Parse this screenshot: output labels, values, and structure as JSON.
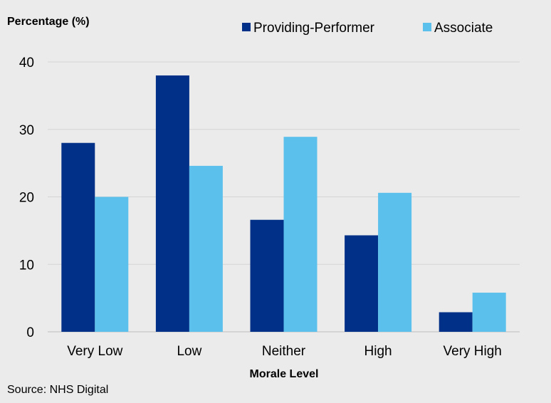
{
  "chart_data": {
    "type": "bar",
    "ylabel": "Percentage (%)",
    "xlabel": "Morale Level",
    "categories": [
      "Very Low",
      "Low",
      "Neither",
      "High",
      "Very High"
    ],
    "series": [
      {
        "name": "Providing-Performer",
        "color": "#003087",
        "values": [
          28,
          38,
          16.6,
          14.3,
          2.9
        ]
      },
      {
        "name": "Associate",
        "color": "#5bc0eb",
        "values": [
          20,
          24.6,
          28.9,
          20.6,
          5.8
        ]
      }
    ],
    "ylim": [
      0,
      40
    ],
    "yticks": [
      0,
      10,
      20,
      30,
      40
    ],
    "grid": true,
    "legend_position": "top"
  },
  "source": "Source: NHS Digital"
}
